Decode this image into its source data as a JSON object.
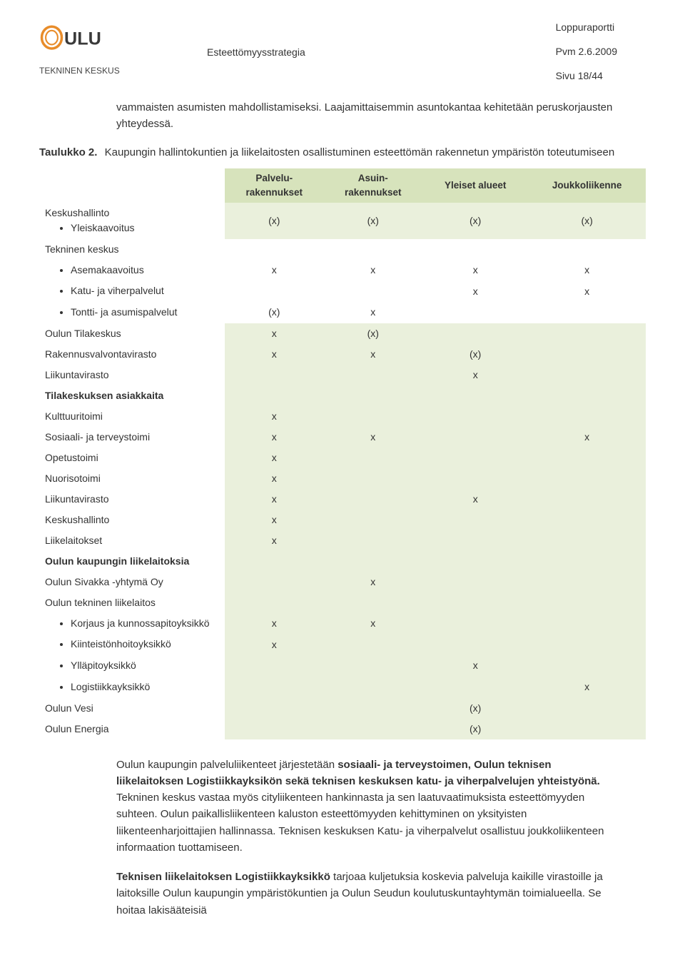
{
  "header": {
    "logo_text": "OULU",
    "logo_sub": "TEKNINEN KESKUS",
    "center": "Esteettömyysstrategia",
    "right_1": "Loppuraportti",
    "right_2": "Pvm 2.6.2009",
    "right_3": "Sivu 18/44",
    "logo_accent": "#e88c2a",
    "logo_dark": "#3a3a3a"
  },
  "intro": "vammaisten asumisten mahdollistamiseksi. Laajamittaisemmin asuntokantaa kehitetään peruskorjausten yhteydessä.",
  "taulukko": {
    "pre": "Taulukko 2.",
    "post": "Kaupungin hallintokuntien ja liikelaitosten osallistuminen esteettömän rakennetun ympäristön toteutumiseen"
  },
  "table": {
    "columns": [
      "Palvelu-rakennukset",
      "Asuin-rakennukset",
      "Yleiset alueet",
      "Joukkoliikenne"
    ],
    "col_header_bg": "#d7e3bc",
    "band_bg": "#eaf0dc",
    "rows": [
      {
        "label": "Keskushallinto",
        "type": "group",
        "bullets": [
          {
            "t": "Yleiskaavoitus"
          }
        ],
        "vals": [
          "(x)",
          "(x)",
          "(x)",
          "(x)"
        ],
        "band": true
      },
      {
        "label": "Tekninen keskus",
        "type": "group",
        "bullets": [
          {
            "t": "Asemakaavoitus",
            "vals": [
              "x",
              "x",
              "x",
              "x"
            ]
          },
          {
            "t": "Katu- ja viherpalvelut",
            "vals": [
              "",
              "",
              "x",
              "x"
            ]
          },
          {
            "t": "Tontti- ja asumispalvelut",
            "vals": [
              "(x)",
              "x",
              "",
              ""
            ]
          }
        ],
        "band": false,
        "multiband": true
      },
      {
        "label": "Oulun Tilakeskus",
        "vals": [
          "x",
          "(x)",
          "",
          ""
        ],
        "band": true
      },
      {
        "label": "Rakennusvalvontavirasto",
        "vals": [
          "x",
          "x",
          "(x)",
          ""
        ],
        "band": false,
        "valband": true
      },
      {
        "label": "Liikuntavirasto",
        "vals": [
          "",
          "",
          "x",
          ""
        ],
        "band": true
      },
      {
        "label": "Tilakeskuksen asiakkaita",
        "bold": true,
        "vals": [
          "",
          "",
          "",
          ""
        ],
        "band": false,
        "valband": true
      },
      {
        "label": "Kulttuuritoimi",
        "vals": [
          "x",
          "",
          "",
          ""
        ],
        "band": true
      },
      {
        "label": "Sosiaali- ja terveystoimi",
        "vals": [
          "x",
          "x",
          "",
          "x"
        ],
        "band": false,
        "valband": true
      },
      {
        "label": "Opetustoimi",
        "vals": [
          "x",
          "",
          "",
          ""
        ],
        "band": true
      },
      {
        "label": "Nuorisotoimi",
        "vals": [
          "x",
          "",
          "",
          ""
        ],
        "band": false,
        "valband": true
      },
      {
        "label": "Liikuntavirasto",
        "vals": [
          "x",
          "",
          "x",
          ""
        ],
        "band": true
      },
      {
        "label": "Keskushallinto",
        "vals": [
          "x",
          "",
          "",
          ""
        ],
        "band": false,
        "valband": true
      },
      {
        "label": "Liikelaitokset",
        "vals": [
          "x",
          "",
          "",
          ""
        ],
        "band": true
      },
      {
        "label": "Oulun kaupungin liikelaitoksia",
        "bold": true,
        "vals": [
          "",
          "",
          "",
          ""
        ],
        "band": false,
        "valband": true
      },
      {
        "label": "Oulun Sivakka -yhtymä Oy",
        "vals": [
          "",
          "x",
          "",
          ""
        ],
        "band": true
      },
      {
        "label": "Oulun tekninen liikelaitos",
        "type": "group",
        "bullets": [
          {
            "t": "Korjaus ja kunnossapitoyksikkö",
            "vals": [
              "x",
              "x",
              "",
              ""
            ]
          },
          {
            "t": "Kiinteistönhoitoyksikkö",
            "vals": [
              "x",
              "",
              "",
              ""
            ]
          },
          {
            "t": "Ylläpitoyksikkö",
            "vals": [
              "",
              "",
              "x",
              ""
            ]
          },
          {
            "t": "Logistiikkayksikkö",
            "vals": [
              "",
              "",
              "",
              "x"
            ]
          }
        ],
        "band": false,
        "multiband": true,
        "valband": true
      },
      {
        "label": "Oulun Vesi",
        "vals": [
          "",
          "",
          "(x)",
          ""
        ],
        "band": true
      },
      {
        "label": "Oulun Energia",
        "vals": [
          "",
          "",
          "(x)",
          ""
        ],
        "band": false,
        "valband": true
      }
    ]
  },
  "para1": {
    "pre": "Oulun kaupungin palveluliikenteet järjestetään ",
    "b1": "sosiaali- ja terveystoimen, Oulun teknisen liikelaitoksen Logistiikkayksikön sekä teknisen keskuksen katu- ja viherpalvelujen yhteistyönä.",
    "post": " Tekninen keskus vastaa myös cityliikenteen hankinnasta ja sen laatuvaatimuksista esteettömyyden suhteen. Oulun paikallisliikenteen kaluston esteettömyyden kehittyminen on yksityisten liikenteenharjoittajien hallinnassa. Teknisen keskuksen Katu- ja viherpalvelut osallistuu joukkoliikenteen informaation tuottamiseen."
  },
  "para2": {
    "b1": "Teknisen liikelaitoksen Logistiikkayksikkö",
    "post": " tarjoaa kuljetuksia koskevia palveluja kaikille virastoille ja laitoksille Oulun kaupungin ympäristökuntien ja Oulun Seudun koulutuskuntayhtymän toimialueella. Se hoitaa lakisääteisiä"
  }
}
